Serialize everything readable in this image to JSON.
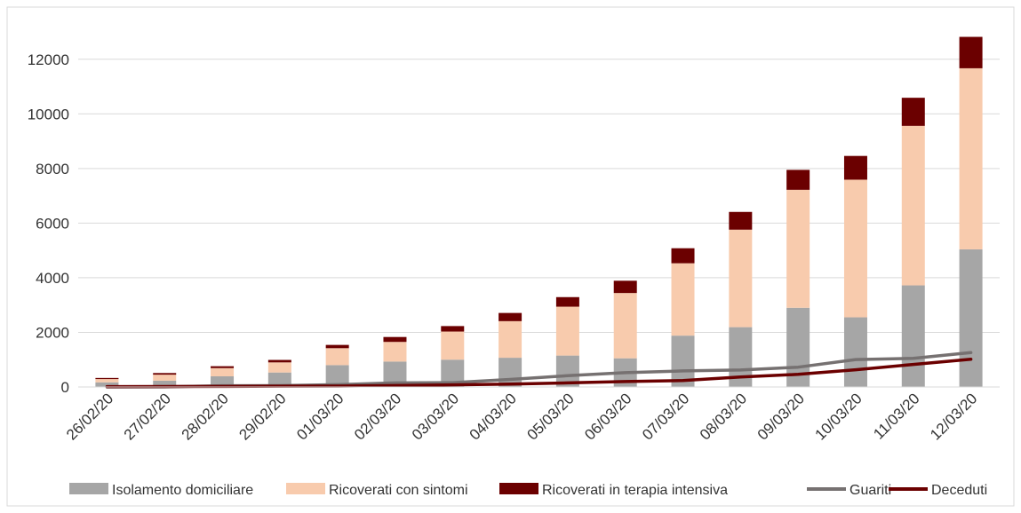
{
  "chart_data": {
    "type": "bar",
    "stacked": true,
    "categories": [
      "26/02/20",
      "27/02/20",
      "28/02/20",
      "29/02/20",
      "01/03/20",
      "02/03/20",
      "03/03/20",
      "04/03/20",
      "05/03/20",
      "06/03/20",
      "07/03/20",
      "08/03/20",
      "09/03/20",
      "10/03/20",
      "11/03/20",
      "12/03/20"
    ],
    "series": [
      {
        "name": "Isolamento domiciliare",
        "kind": "bar",
        "color": "#a6a6a6",
        "values": [
          170,
          230,
          390,
          530,
          800,
          930,
          1000,
          1070,
          1150,
          1050,
          1880,
          2190,
          2900,
          2550,
          3720,
          5040
        ]
      },
      {
        "name": "Ricoverati con sintomi",
        "kind": "bar",
        "color": "#f8cbad",
        "values": [
          120,
          220,
          300,
          370,
          620,
          720,
          1030,
          1340,
          1790,
          2390,
          2650,
          3570,
          4320,
          5040,
          5840,
          6630
        ]
      },
      {
        "name": "Ricoverati in terapia intensiva",
        "kind": "bar",
        "color": "#6b0000",
        "values": [
          40,
          60,
          70,
          90,
          120,
          180,
          200,
          300,
          350,
          450,
          550,
          650,
          730,
          870,
          1030,
          1150
        ]
      },
      {
        "name": "Guariti",
        "kind": "line",
        "color": "#767171",
        "values": [
          1,
          3,
          46,
          50,
          83,
          149,
          160,
          276,
          414,
          523,
          589,
          622,
          724,
          1004,
          1045,
          1258
        ]
      },
      {
        "name": "Deceduti",
        "kind": "line",
        "color": "#6b0000",
        "values": [
          12,
          17,
          21,
          29,
          34,
          52,
          79,
          107,
          148,
          197,
          233,
          366,
          463,
          631,
          827,
          1016
        ]
      }
    ],
    "y_ticks": [
      "0",
      "2000",
      "4000",
      "6000",
      "8000",
      "10000",
      "12000"
    ],
    "ylim": [
      0,
      13000
    ],
    "grid": "horizontal",
    "legend_position": "bottom",
    "colors": {
      "axis": "#d9d9d9",
      "grid": "#d9d9d9",
      "text": "#333333"
    }
  }
}
